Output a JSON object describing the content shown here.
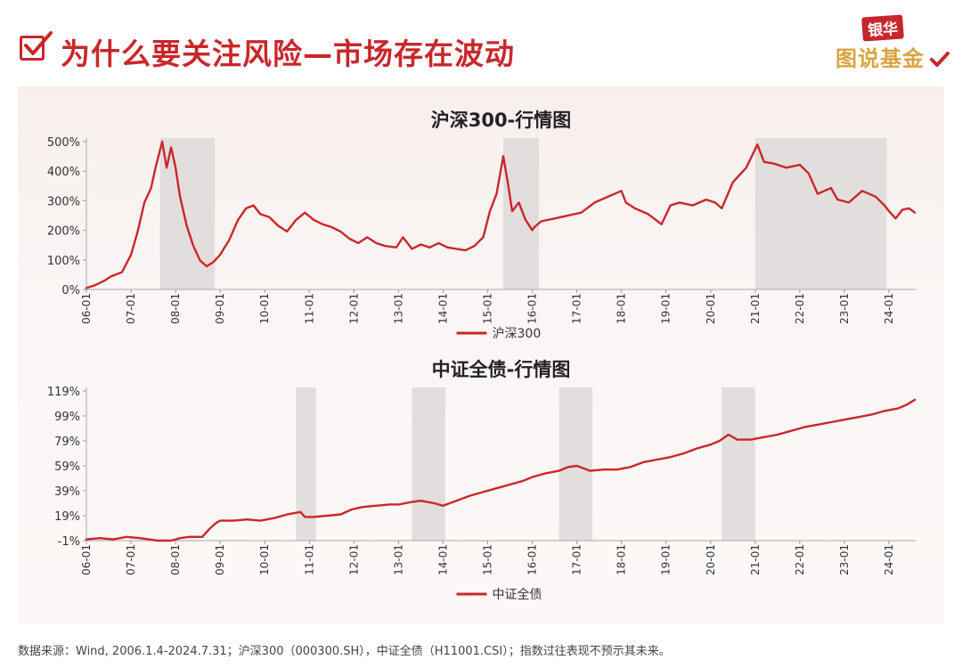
{
  "page": {
    "title": "为什么要关注风险—市场存在波动",
    "logo_top": "银华",
    "logo_bottom": "图说基金",
    "source_note": "数据来源：Wind, 2006.1.4-2024.7.31；沪深300（000300.SH），中证全债（H11001.CSI）；指数过往表现不预示其未来。"
  },
  "colors": {
    "accent": "#c9272b",
    "shade": "#e3dede",
    "logo_gold": "#d9a441"
  },
  "icons": [
    "checkbox-icon",
    "logo-check-icon"
  ],
  "chart_data": [
    {
      "type": "line",
      "title": "沪深300-行情图",
      "x_ticks": [
        "06-01",
        "07-01",
        "08-01",
        "09-01",
        "10-01",
        "11-01",
        "12-01",
        "13-01",
        "14-01",
        "15-01",
        "16-01",
        "17-01",
        "18-01",
        "19-01",
        "20-01",
        "21-01",
        "22-01",
        "23-01",
        "24-01"
      ],
      "y_ticks": [
        "0%",
        "100%",
        "200%",
        "300%",
        "400%",
        "500%"
      ],
      "ylim": [
        0,
        510
      ],
      "xlim": [
        2006.0,
        2024.6
      ],
      "legend": "沪深300",
      "legend_position": "bottom-center",
      "shaded_periods": [
        [
          2007.65,
          2008.88
        ],
        [
          2015.35,
          2016.15
        ],
        [
          2021.0,
          2023.95
        ]
      ],
      "series": [
        {
          "name": "沪深300",
          "x": [
            2006.0,
            2006.2,
            2006.4,
            2006.55,
            2006.8,
            2007.0,
            2007.15,
            2007.3,
            2007.45,
            2007.55,
            2007.7,
            2007.8,
            2007.9,
            2008.0,
            2008.1,
            2008.25,
            2008.4,
            2008.55,
            2008.7,
            2008.85,
            2009.0,
            2009.2,
            2009.4,
            2009.58,
            2009.75,
            2009.9,
            2010.1,
            2010.3,
            2010.5,
            2010.7,
            2010.9,
            2011.1,
            2011.3,
            2011.5,
            2011.7,
            2011.9,
            2012.1,
            2012.3,
            2012.5,
            2012.7,
            2012.95,
            2013.1,
            2013.3,
            2013.5,
            2013.7,
            2013.9,
            2014.1,
            2014.3,
            2014.5,
            2014.7,
            2014.9,
            2015.05,
            2015.2,
            2015.35,
            2015.45,
            2015.55,
            2015.7,
            2015.85,
            2016.0,
            2016.05,
            2016.2,
            2016.5,
            2016.8,
            2017.1,
            2017.4,
            2017.7,
            2018.0,
            2018.1,
            2018.3,
            2018.6,
            2018.9,
            2019.1,
            2019.3,
            2019.6,
            2019.9,
            2020.1,
            2020.25,
            2020.5,
            2020.8,
            2021.05,
            2021.2,
            2021.4,
            2021.7,
            2022.0,
            2022.2,
            2022.4,
            2022.7,
            2022.85,
            2023.1,
            2023.4,
            2023.7,
            2023.9,
            2024.0,
            2024.15,
            2024.3,
            2024.45,
            2024.58
          ],
          "values": [
            5,
            15,
            30,
            45,
            60,
            120,
            200,
            300,
            350,
            420,
            510,
            420,
            490,
            420,
            320,
            220,
            150,
            100,
            80,
            95,
            120,
            170,
            240,
            280,
            290,
            260,
            250,
            220,
            200,
            240,
            265,
            240,
            225,
            215,
            200,
            175,
            160,
            180,
            160,
            150,
            145,
            180,
            140,
            155,
            145,
            160,
            145,
            140,
            135,
            150,
            180,
            270,
            330,
            460,
            370,
            270,
            300,
            240,
            205,
            215,
            235,
            245,
            255,
            265,
            300,
            320,
            340,
            300,
            280,
            260,
            225,
            290,
            300,
            290,
            310,
            300,
            280,
            370,
            420,
            500,
            440,
            435,
            420,
            430,
            400,
            330,
            350,
            310,
            300,
            340,
            320,
            290,
            270,
            245,
            275,
            280,
            265
          ]
        }
      ]
    },
    {
      "type": "line",
      "title": "中证全债-行情图",
      "x_ticks": [
        "06-01",
        "07-01",
        "08-01",
        "09-01",
        "10-01",
        "11-01",
        "12-01",
        "13-01",
        "14-01",
        "15-01",
        "16-01",
        "17-01",
        "18-01",
        "19-01",
        "20-01",
        "21-01",
        "22-01",
        "23-01",
        "24-01"
      ],
      "y_ticks": [
        "-1%",
        "19%",
        "39%",
        "59%",
        "79%",
        "99%",
        "119%"
      ],
      "ylim": [
        -1,
        119
      ],
      "xlim": [
        2006.0,
        2024.6
      ],
      "legend": "中证全债",
      "legend_position": "bottom-center",
      "shaded_periods": [
        [
          2010.7,
          2011.15
        ],
        [
          2013.3,
          2014.05
        ],
        [
          2016.6,
          2017.35
        ],
        [
          2020.25,
          2021.0
        ]
      ],
      "series": [
        {
          "name": "中证全债",
          "x": [
            2006.0,
            2006.3,
            2006.6,
            2006.9,
            2007.2,
            2007.4,
            2007.6,
            2007.9,
            2008.1,
            2008.3,
            2008.6,
            2008.75,
            2008.9,
            2009.0,
            2009.3,
            2009.6,
            2009.9,
            2010.2,
            2010.5,
            2010.8,
            2010.9,
            2011.1,
            2011.4,
            2011.7,
            2011.95,
            2012.2,
            2012.5,
            2012.8,
            2013.0,
            2013.3,
            2013.5,
            2013.8,
            2014.0,
            2014.3,
            2014.6,
            2014.9,
            2015.2,
            2015.5,
            2015.8,
            2016.0,
            2016.3,
            2016.6,
            2016.8,
            2017.0,
            2017.3,
            2017.6,
            2017.9,
            2018.2,
            2018.5,
            2018.8,
            2019.1,
            2019.4,
            2019.7,
            2020.0,
            2020.2,
            2020.4,
            2020.6,
            2020.9,
            2021.2,
            2021.5,
            2021.8,
            2022.1,
            2022.4,
            2022.7,
            2023.0,
            2023.3,
            2023.6,
            2023.9,
            2024.2,
            2024.4,
            2024.58
          ],
          "values": [
            0,
            1,
            0,
            2,
            1,
            0,
            -1,
            -1,
            1,
            2,
            2,
            8,
            13,
            15,
            15,
            16,
            15,
            17,
            20,
            22,
            18,
            18,
            19,
            20,
            24,
            26,
            27,
            28,
            28,
            30,
            31,
            29,
            27,
            31,
            35,
            38,
            41,
            44,
            47,
            50,
            53,
            55,
            58,
            59,
            55,
            56,
            56,
            58,
            62,
            64,
            66,
            69,
            73,
            76,
            79,
            84,
            80,
            80,
            82,
            84,
            87,
            90,
            92,
            94,
            96,
            98,
            100,
            103,
            105,
            108,
            112
          ]
        }
      ]
    }
  ]
}
